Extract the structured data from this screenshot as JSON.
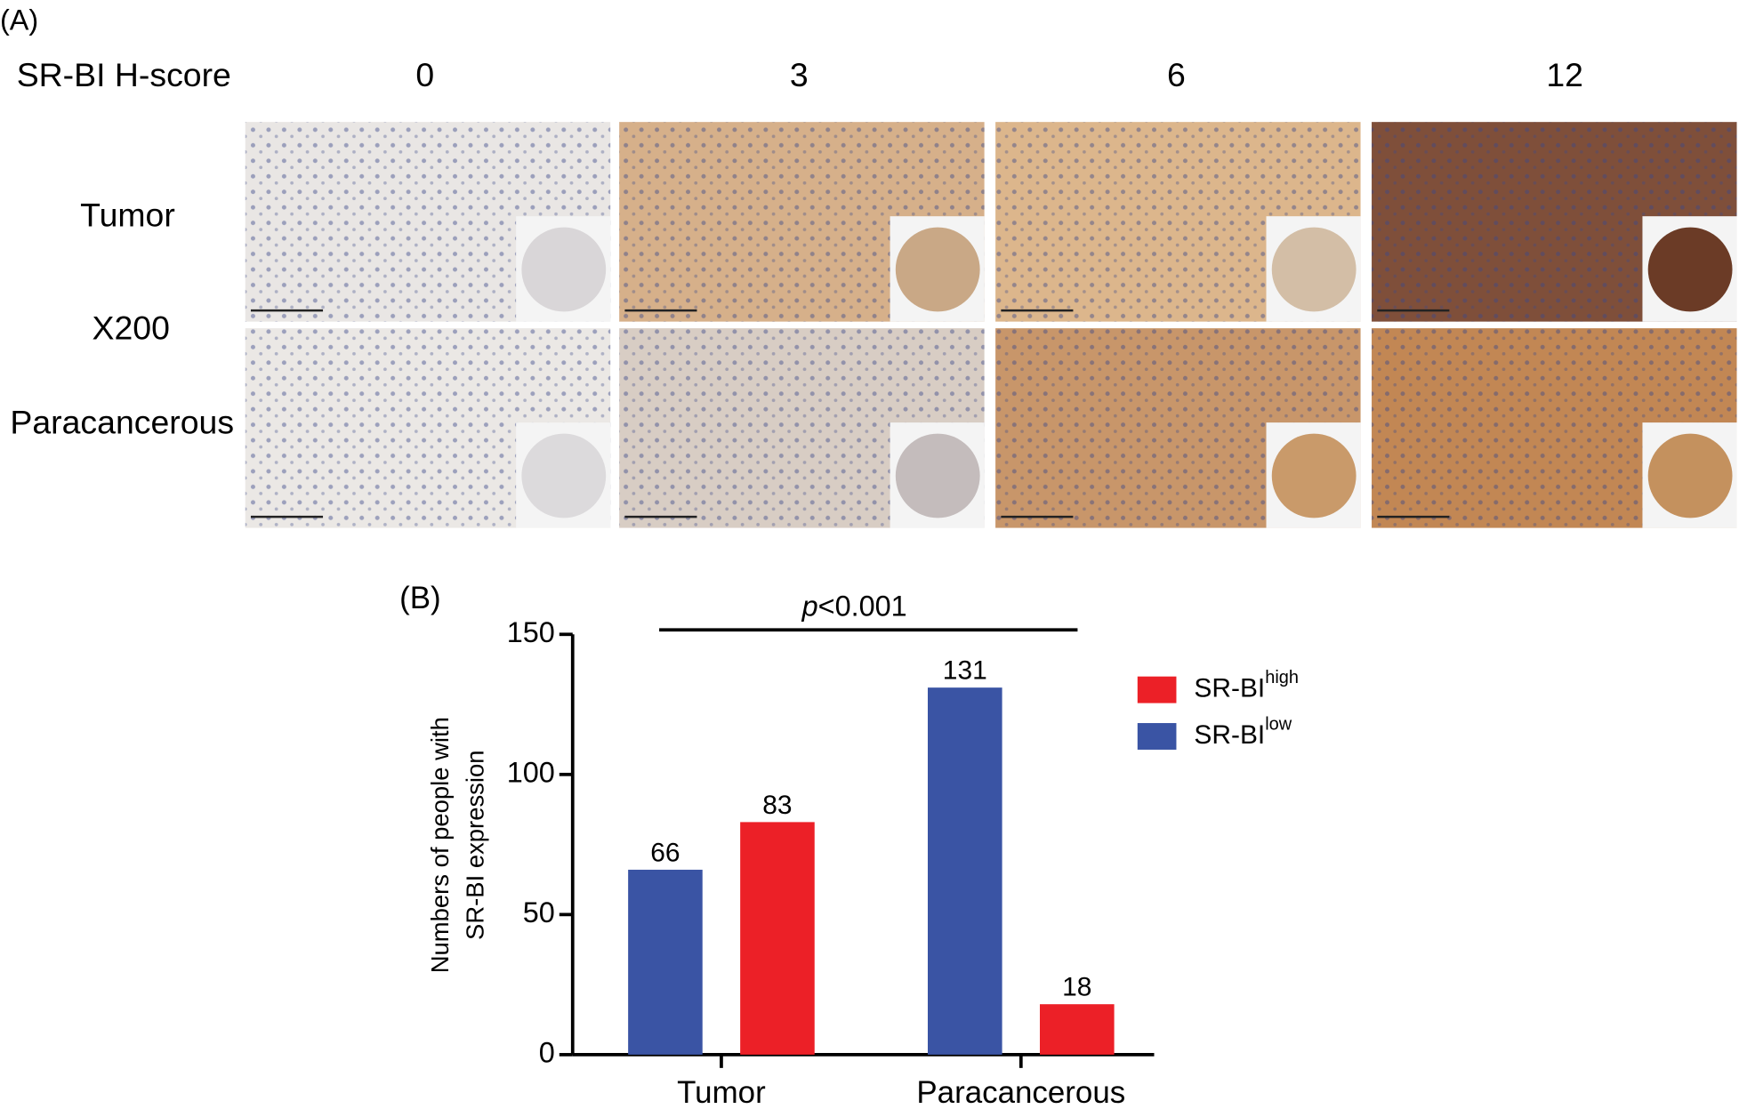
{
  "panel_a": {
    "label": "(A)",
    "row_header": "SR-BI H-score",
    "scores": [
      "0",
      "3",
      "6",
      "12"
    ],
    "rows": [
      "Tumor",
      "Paracancerous"
    ],
    "magnification": "X200"
  },
  "chart_data": {
    "type": "bar",
    "panel_label": "(B)",
    "ylabel": [
      "Numbers of people with",
      "SR-BI expression"
    ],
    "annotation": {
      "italic": "p",
      "text": "<0.001"
    },
    "categories": [
      "Tumor",
      "Paracancerous"
    ],
    "series": [
      {
        "name": "SR-BI",
        "name_sup": "low",
        "color": "#3a54a4",
        "values": [
          66,
          131
        ]
      },
      {
        "name": "SR-BI",
        "name_sup": "high",
        "color": "#ec2027",
        "values": [
          83,
          18
        ]
      }
    ],
    "ylim": [
      0,
      150
    ],
    "yticks": [
      0,
      50,
      100,
      150
    ]
  }
}
